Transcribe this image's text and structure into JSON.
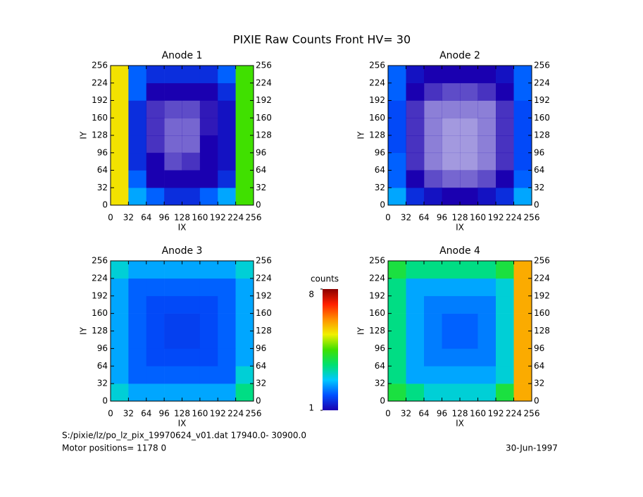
{
  "title": "PIXIE Raw Counts Front HV= 30",
  "chart_data": [
    {
      "type": "heatmap",
      "title": "Anode 1",
      "xlabel": "IX",
      "ylabel": "IY",
      "xlim": [
        0,
        256
      ],
      "ylim": [
        0,
        256
      ],
      "xticks": [
        0,
        32,
        64,
        96,
        128,
        160,
        192,
        224,
        256
      ],
      "yticks": [
        0,
        32,
        64,
        96,
        128,
        160,
        192,
        224,
        256
      ],
      "z": [
        [
          5.5,
          2.5,
          2,
          1.5,
          1.5,
          2,
          2.5,
          4.5
        ],
        [
          5.5,
          2,
          1,
          1,
          1,
          1,
          1.5,
          4.5
        ],
        [
          5.5,
          1.5,
          1,
          0.7,
          0.8,
          1,
          1.2,
          4.5
        ],
        [
          5.5,
          1.5,
          0.8,
          0.6,
          0.6,
          1,
          1.2,
          4.5
        ],
        [
          5.5,
          1.5,
          0.8,
          0.6,
          0.6,
          0.9,
          1.2,
          4.5
        ],
        [
          5.5,
          1.5,
          0.8,
          0.7,
          0.7,
          0.9,
          1.2,
          4.5
        ],
        [
          5.5,
          2,
          1,
          1,
          1,
          1,
          1.5,
          4.5
        ],
        [
          5.5,
          2,
          1.5,
          1.5,
          1.5,
          1.5,
          2,
          4.5
        ]
      ]
    },
    {
      "type": "heatmap",
      "title": "Anode 2",
      "xlabel": "IX",
      "ylabel": "IY",
      "xlim": [
        0,
        256
      ],
      "ylim": [
        0,
        256
      ],
      "xticks": [
        0,
        32,
        64,
        96,
        128,
        160,
        192,
        224,
        256
      ],
      "yticks": [
        0,
        32,
        64,
        96,
        128,
        160,
        192,
        224,
        256
      ],
      "z": [
        [
          2.5,
          1.5,
          1.2,
          1,
          1,
          1.2,
          1.5,
          2.5
        ],
        [
          2,
          1,
          0.7,
          0.6,
          0.6,
          0.7,
          1,
          2
        ],
        [
          2,
          0.8,
          0.5,
          0.4,
          0.4,
          0.5,
          0.8,
          1.8
        ],
        [
          1.8,
          0.8,
          0.5,
          0.4,
          0.4,
          0.5,
          0.8,
          1.8
        ],
        [
          1.8,
          0.8,
          0.5,
          0.4,
          0.4,
          0.5,
          0.8,
          1.8
        ],
        [
          1.8,
          0.8,
          0.5,
          0.5,
          0.5,
          0.5,
          0.8,
          1.8
        ],
        [
          2,
          1,
          0.8,
          0.7,
          0.7,
          0.8,
          1,
          2
        ],
        [
          2,
          1.2,
          1,
          1,
          1,
          1,
          1.2,
          2
        ]
      ]
    },
    {
      "type": "heatmap",
      "title": "Anode 3",
      "xlabel": "IX",
      "ylabel": "IY",
      "xlim": [
        0,
        256
      ],
      "ylim": [
        0,
        256
      ],
      "xticks": [
        0,
        32,
        64,
        96,
        128,
        160,
        192,
        224,
        256
      ],
      "yticks": [
        0,
        32,
        64,
        96,
        128,
        160,
        192,
        224,
        256
      ],
      "z": [
        [
          3,
          2.5,
          2.5,
          2.5,
          2.5,
          2.5,
          2.5,
          3.5
        ],
        [
          2.5,
          2,
          2,
          2,
          2,
          2,
          2,
          3
        ],
        [
          2.5,
          2,
          1.8,
          1.8,
          1.8,
          1.8,
          2,
          2.5
        ],
        [
          2.5,
          2,
          1.8,
          1.7,
          1.7,
          1.8,
          2,
          2.5
        ],
        [
          2.5,
          2,
          1.8,
          1.7,
          1.7,
          1.8,
          2,
          2.5
        ],
        [
          2.5,
          2,
          1.8,
          1.8,
          1.8,
          1.8,
          2,
          2.5
        ],
        [
          2.5,
          2,
          2,
          2,
          2,
          2,
          2,
          2.5
        ],
        [
          3,
          2.5,
          2.5,
          2.5,
          2.5,
          2.5,
          2.5,
          3
        ]
      ]
    },
    {
      "type": "heatmap",
      "title": "Anode 4",
      "xlabel": "IX",
      "ylabel": "IY",
      "xlim": [
        0,
        256
      ],
      "ylim": [
        0,
        256
      ],
      "xticks": [
        0,
        32,
        64,
        96,
        128,
        160,
        192,
        224,
        256
      ],
      "yticks": [
        0,
        32,
        64,
        96,
        128,
        160,
        192,
        224,
        256
      ],
      "z": [
        [
          4,
          3.5,
          3,
          3,
          3,
          3,
          4,
          6
        ],
        [
          3.5,
          2.5,
          2.5,
          2.5,
          2.5,
          2.5,
          3,
          6
        ],
        [
          3.5,
          2.5,
          2.2,
          2.2,
          2.2,
          2.2,
          3,
          6
        ],
        [
          3.5,
          2.5,
          2.2,
          2,
          2,
          2.2,
          3,
          6
        ],
        [
          3.5,
          2.5,
          2.2,
          2,
          2,
          2.2,
          3,
          6
        ],
        [
          3.5,
          2.5,
          2.2,
          2.2,
          2.2,
          2.2,
          3,
          6
        ],
        [
          3.5,
          2.5,
          2.5,
          2.5,
          2.5,
          2.5,
          3,
          6
        ],
        [
          4,
          3.5,
          3.5,
          3.5,
          3.5,
          3.5,
          4,
          6
        ]
      ]
    }
  ],
  "colorscale": {
    "label": "counts",
    "lim": [
      1,
      8
    ],
    "ticks": [
      1,
      8
    ],
    "colors": [
      "#1a00b0",
      "#0050ff",
      "#00c8ff",
      "#00e070",
      "#40e000",
      "#f0f000",
      "#ff9000",
      "#ff2000",
      "#8a0000"
    ]
  },
  "footer": {
    "file": "S:/pixie/lz/po_lz_pix_19970624_v01.dat   17940.0- 30900.0",
    "motor": "Motor positions= 1178 0",
    "date": "30-Jun-1997"
  }
}
